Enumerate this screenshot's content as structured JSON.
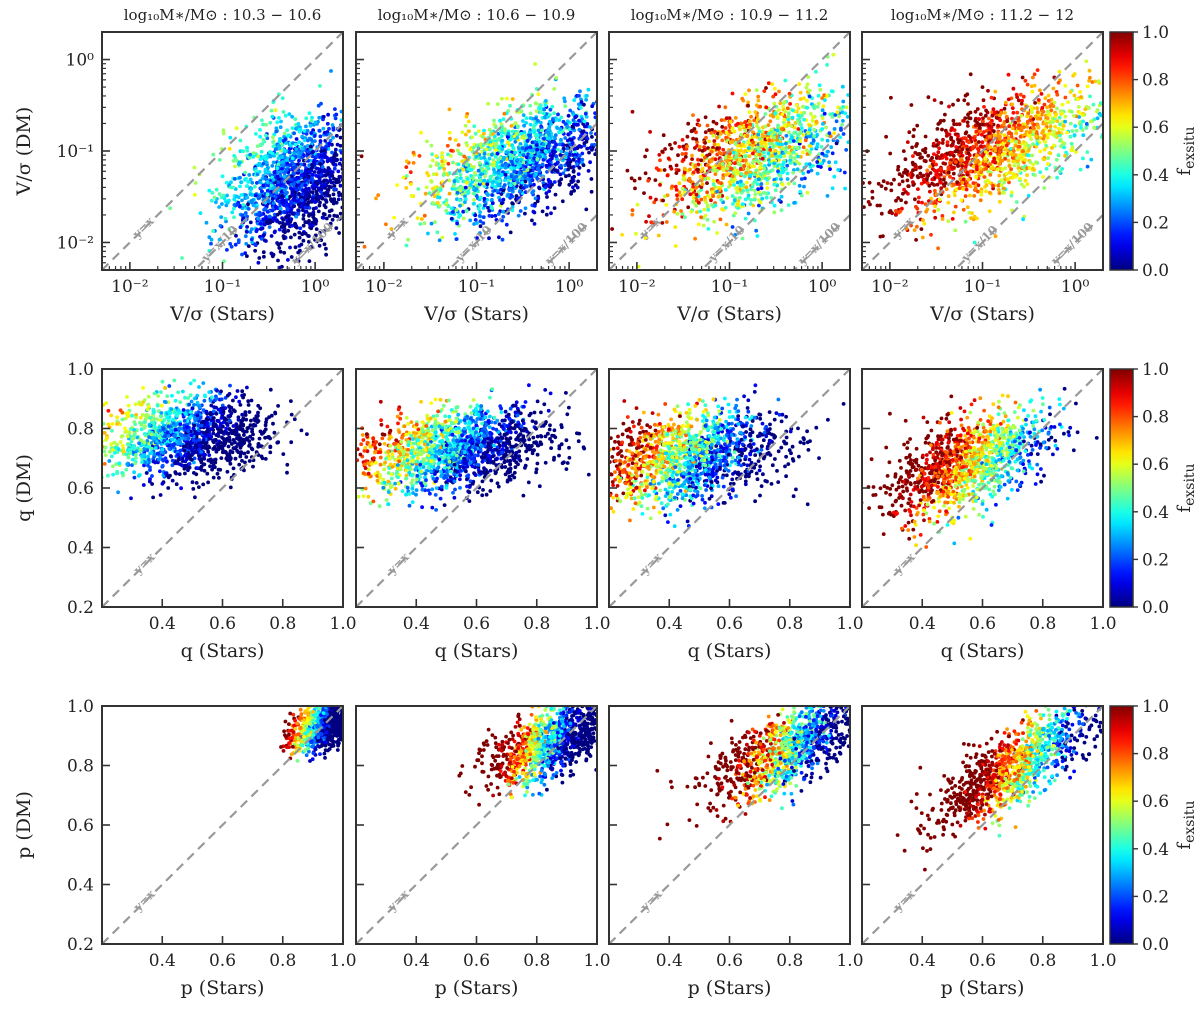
{
  "chart_data": {
    "type": "scatter",
    "columns": [
      {
        "title_prefix": "log₁₀M∗/M⊙ : ",
        "title_range": "10.3 − 10.6"
      },
      {
        "title_prefix": "log₁₀M∗/M⊙ : ",
        "title_range": "10.6 − 10.9"
      },
      {
        "title_prefix": "log₁₀M∗/M⊙ : ",
        "title_range": "10.9 − 11.2"
      },
      {
        "title_prefix": "log₁₀M∗/M⊙ : ",
        "title_range": "11.2 − 12"
      }
    ],
    "rows": [
      {
        "name": "vsigma",
        "xlabel": "V/σ (Stars)",
        "ylabel": "V/σ (DM)",
        "scale": "log",
        "xlim": [
          0.005,
          2.0
        ],
        "ylim": [
          0.005,
          2.0
        ],
        "xticks": [
          {
            "value": 0.01,
            "label": "10⁻²"
          },
          {
            "value": 0.1,
            "label": "10⁻¹"
          },
          {
            "value": 1,
            "label": "10⁰"
          }
        ],
        "yticks": [
          {
            "value": 0.01,
            "label": "10⁻²"
          },
          {
            "value": 0.1,
            "label": "10⁻¹"
          },
          {
            "value": 1,
            "label": "10⁰"
          }
        ],
        "reference_lines": [
          {
            "label": "y=x",
            "factor": 1,
            "label_at_x": 0.015
          },
          {
            "label": "y=x/10",
            "factor": 0.1,
            "label_at_x": 0.1
          },
          {
            "label": "y=x/100",
            "factor": 0.01,
            "label_at_x": 1.0
          }
        ],
        "panels": [
          {
            "n": 1500,
            "mean": [
              -0.25,
              -1.35
            ],
            "sd": [
              0.35,
              0.35
            ],
            "corr": 0.25,
            "color_mean": 0.15,
            "color_sd": 0.09,
            "color_slope": -0.12
          },
          {
            "n": 1500,
            "mean": [
              -0.55,
              -1.1
            ],
            "sd": [
              0.5,
              0.32
            ],
            "corr": 0.5,
            "color_mean": 0.3,
            "color_sd": 0.12,
            "color_slope": -0.18
          },
          {
            "n": 1300,
            "mean": [
              -0.75,
              -1.05
            ],
            "sd": [
              0.55,
              0.35
            ],
            "corr": 0.55,
            "color_mean": 0.6,
            "color_sd": 0.14,
            "color_slope": -0.2
          },
          {
            "n": 1300,
            "mean": [
              -0.9,
              -1.0
            ],
            "sd": [
              0.55,
              0.35
            ],
            "corr": 0.6,
            "color_mean": 0.78,
            "color_sd": 0.1,
            "color_slope": -0.2
          }
        ]
      },
      {
        "name": "q",
        "xlabel": "q (Stars)",
        "ylabel": "q (DM)",
        "scale": "linear",
        "xlim": [
          0.2,
          1.0
        ],
        "ylim": [
          0.2,
          1.0
        ],
        "xticks": [
          {
            "value": 0.4,
            "label": "0.4"
          },
          {
            "value": 0.6,
            "label": "0.6"
          },
          {
            "value": 0.8,
            "label": "0.8"
          },
          {
            "value": 1.0,
            "label": "1.0"
          }
        ],
        "yticks": [
          {
            "value": 0.2,
            "label": "0.2"
          },
          {
            "value": 0.4,
            "label": "0.4"
          },
          {
            "value": 0.6,
            "label": "0.6"
          },
          {
            "value": 0.8,
            "label": "0.8"
          },
          {
            "value": 1.0,
            "label": "1.0"
          }
        ],
        "reference_lines": [
          {
            "label": "y=x",
            "factor": 1,
            "label_at_x": 0.35
          }
        ],
        "panels": [
          {
            "n": 1300,
            "mean": [
              0.48,
              0.77
            ],
            "sd": [
              0.14,
              0.07
            ],
            "corr": 0.15,
            "color_mean": 0.15,
            "color_sd": 0.1,
            "color_slope": -0.25
          },
          {
            "n": 1500,
            "mean": [
              0.52,
              0.73
            ],
            "sd": [
              0.16,
              0.07
            ],
            "corr": 0.3,
            "color_mean": 0.3,
            "color_sd": 0.12,
            "color_slope": -0.3
          },
          {
            "n": 1400,
            "mean": [
              0.45,
              0.7
            ],
            "sd": [
              0.16,
              0.08
            ],
            "corr": 0.35,
            "color_mean": 0.45,
            "color_sd": 0.14,
            "color_slope": -0.35
          },
          {
            "n": 1200,
            "mean": [
              0.55,
              0.68
            ],
            "sd": [
              0.13,
              0.09
            ],
            "corr": 0.55,
            "color_mean": 0.68,
            "color_sd": 0.12,
            "color_slope": -0.3
          }
        ]
      },
      {
        "name": "p",
        "xlabel": "p (Stars)",
        "ylabel": "p (DM)",
        "scale": "linear",
        "xlim": [
          0.2,
          1.0
        ],
        "ylim": [
          0.2,
          1.0
        ],
        "xticks": [
          {
            "value": 0.4,
            "label": "0.4"
          },
          {
            "value": 0.6,
            "label": "0.6"
          },
          {
            "value": 0.8,
            "label": "0.8"
          },
          {
            "value": 1.0,
            "label": "1.0"
          }
        ],
        "yticks": [
          {
            "value": 0.2,
            "label": "0.2"
          },
          {
            "value": 0.4,
            "label": "0.4"
          },
          {
            "value": 0.6,
            "label": "0.6"
          },
          {
            "value": 0.8,
            "label": "0.8"
          },
          {
            "value": 1.0,
            "label": "1.0"
          }
        ],
        "reference_lines": [
          {
            "label": "y=x",
            "factor": 1,
            "label_at_x": 0.35
          }
        ],
        "panels": [
          {
            "n": 900,
            "mean": [
              0.93,
              0.93
            ],
            "sd": [
              0.05,
              0.04
            ],
            "corr": 0.4,
            "color_mean": 0.15,
            "color_sd": 0.1,
            "color_slope": -0.4
          },
          {
            "n": 1100,
            "mean": [
              0.85,
              0.88
            ],
            "sd": [
              0.1,
              0.07
            ],
            "corr": 0.6,
            "color_mean": 0.3,
            "color_sd": 0.13,
            "color_slope": -0.5
          },
          {
            "n": 1100,
            "mean": [
              0.8,
              0.86
            ],
            "sd": [
              0.13,
              0.09
            ],
            "corr": 0.7,
            "color_mean": 0.45,
            "color_sd": 0.15,
            "color_slope": -0.5
          },
          {
            "n": 1100,
            "mean": [
              0.7,
              0.79
            ],
            "sd": [
              0.13,
              0.1
            ],
            "corr": 0.8,
            "color_mean": 0.7,
            "color_sd": 0.12,
            "color_slope": -0.45
          }
        ]
      }
    ],
    "colorbar": {
      "label_main": "f",
      "label_sub": "exsitu",
      "colormap": "jet",
      "range": [
        0.0,
        1.0
      ],
      "ticks": [
        {
          "value": 0.0,
          "label": "0.0"
        },
        {
          "value": 0.2,
          "label": "0.2"
        },
        {
          "value": 0.4,
          "label": "0.4"
        },
        {
          "value": 0.6,
          "label": "0.6"
        },
        {
          "value": 0.8,
          "label": "0.8"
        },
        {
          "value": 1.0,
          "label": "1.0"
        }
      ]
    },
    "reference_line_color": "#999999",
    "axes_color": "#333333"
  }
}
